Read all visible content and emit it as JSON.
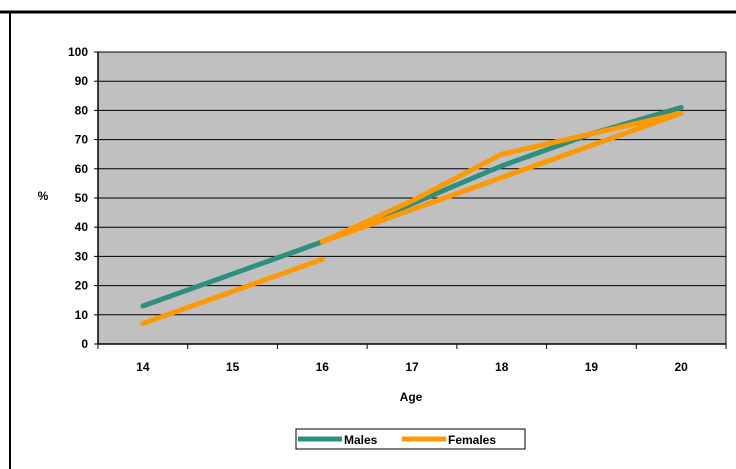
{
  "chart_data": {
    "type": "line",
    "title": "",
    "xlabel": "Age",
    "ylabel": "%",
    "x": [
      14,
      15,
      16,
      17,
      18,
      19,
      20
    ],
    "ylim": [
      0,
      100
    ],
    "y_ticks": [
      0,
      10,
      20,
      30,
      40,
      50,
      60,
      70,
      80,
      90,
      100
    ],
    "grid": true,
    "legend_position": "bottom",
    "series": [
      {
        "name": "Males",
        "color": "#2f8f7f",
        "values": [
          13,
          24,
          35,
          48,
          61,
          72,
          81
        ]
      },
      {
        "name": "Females",
        "color": "#ff9900",
        "values": [
          7,
          18,
          29,
          49,
          65,
          72,
          79
        ],
        "segments": [
          [
            14,
            16
          ],
          [
            16,
            20
          ]
        ],
        "segment_values": [
          [
            7,
            29
          ],
          [
            35,
            79
          ]
        ]
      }
    ],
    "plot_background": "#c0c0c0",
    "gridline_color": "#000000"
  }
}
